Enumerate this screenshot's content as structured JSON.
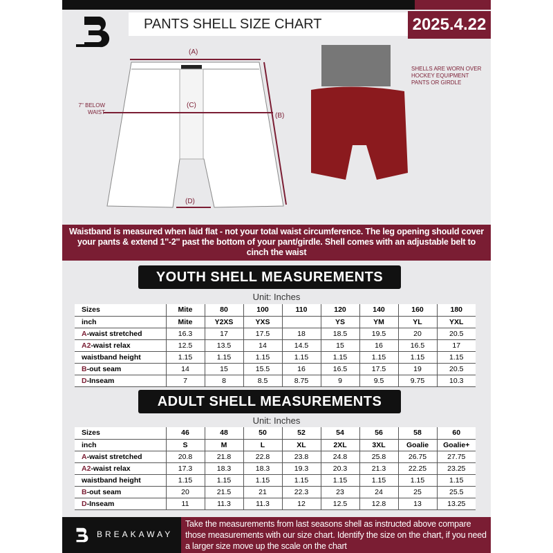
{
  "header": {
    "title": "PANTS SHELL SIZE CHART",
    "date": "2025.4.22",
    "logo_text": "B"
  },
  "diagram": {
    "label_a": "(A)",
    "label_b": "(B)",
    "label_c": "(C)",
    "label_d": "(D)",
    "waist_note": "7'' BELOW WAIST",
    "shell_note": "SHELLS ARE WORN OVER HOCKEY EQUIPMENT PANTS OR GIRDLE"
  },
  "banner": {
    "text": "Waistband is measured when laid flat - not your total waist circumference. The leg opening should cover your pants & extend 1''-2'' past the bottom of your pant/girdle. Shell comes with an adjustable belt to cinch the waist"
  },
  "youth": {
    "title": "YOUTH SHELL MEASUREMENTS",
    "unit": "Unit: Inches",
    "rows": [
      {
        "prefix": "",
        "label": "Sizes",
        "values": [
          "Mite",
          "80",
          "100",
          "110",
          "120",
          "140",
          "160",
          "180"
        ]
      },
      {
        "prefix": "",
        "label": "inch",
        "values": [
          "Mite",
          "Y2XS",
          "YXS",
          "",
          "YS",
          "YM",
          "YL",
          "YXL"
        ]
      },
      {
        "prefix": "A",
        "label": "-waist stretched",
        "values": [
          "16.3",
          "17",
          "17.5",
          "18",
          "18.5",
          "19.5",
          "20",
          "20.5"
        ]
      },
      {
        "prefix": "A2",
        "label": "-waist relax",
        "values": [
          "12.5",
          "13.5",
          "14",
          "14.5",
          "15",
          "16",
          "16.5",
          "17"
        ]
      },
      {
        "prefix": "",
        "label": "waistband height",
        "values": [
          "1.15",
          "1.15",
          "1.15",
          "1.15",
          "1.15",
          "1.15",
          "1.15",
          "1.15"
        ]
      },
      {
        "prefix": "B",
        "label": "-out seam",
        "values": [
          "14",
          "15",
          "15.5",
          "16",
          "16.5",
          "17.5",
          "19",
          "20.5"
        ]
      },
      {
        "prefix": "D",
        "label": "-Inseam",
        "values": [
          "7",
          "8",
          "8.5",
          "8.75",
          "9",
          "9.5",
          "9.75",
          "10.3"
        ]
      }
    ]
  },
  "adult": {
    "title": "ADULT SHELL MEASUREMENTS",
    "unit": "Unit: Inches",
    "rows": [
      {
        "prefix": "",
        "label": "Sizes",
        "values": [
          "46",
          "48",
          "50",
          "52",
          "54",
          "56",
          "58",
          "60"
        ]
      },
      {
        "prefix": "",
        "label": "inch",
        "values": [
          "S",
          "M",
          "L",
          "XL",
          "2XL",
          "3XL",
          "Goalie",
          "Goalie+"
        ]
      },
      {
        "prefix": "A",
        "label": "-waist stretched",
        "values": [
          "20.8",
          "21.8",
          "22.8",
          "23.8",
          "24.8",
          "25.8",
          "26.75",
          "27.75"
        ]
      },
      {
        "prefix": "A2",
        "label": "-waist relax",
        "values": [
          "17.3",
          "18.3",
          "18.3",
          "19.3",
          "20.3",
          "21.3",
          "22.25",
          "23.25"
        ]
      },
      {
        "prefix": "",
        "label": "waistband height",
        "values": [
          "1.15",
          "1.15",
          "1.15",
          "1.15",
          "1.15",
          "1.15",
          "1.15",
          "1.15"
        ]
      },
      {
        "prefix": "B",
        "label": "-out seam",
        "values": [
          "20",
          "21.5",
          "21",
          "22.3",
          "23",
          "24",
          "25",
          "25.5"
        ]
      },
      {
        "prefix": "D",
        "label": "-Inseam",
        "values": [
          "11",
          "11.3",
          "11.3",
          "12",
          "12.5",
          "12.8",
          "13",
          "13.25"
        ]
      }
    ]
  },
  "footer": {
    "brand": "BREAKAWAY",
    "text": "Take the measurements from last seasons shell as instructed above compare those measurements  with our size chart. Identify the size on the chart, if you need a larger size move up the scale on the chart"
  },
  "colors": {
    "accent": "#7a1d33",
    "dark": "#111111",
    "background": "#e9e9eb"
  }
}
